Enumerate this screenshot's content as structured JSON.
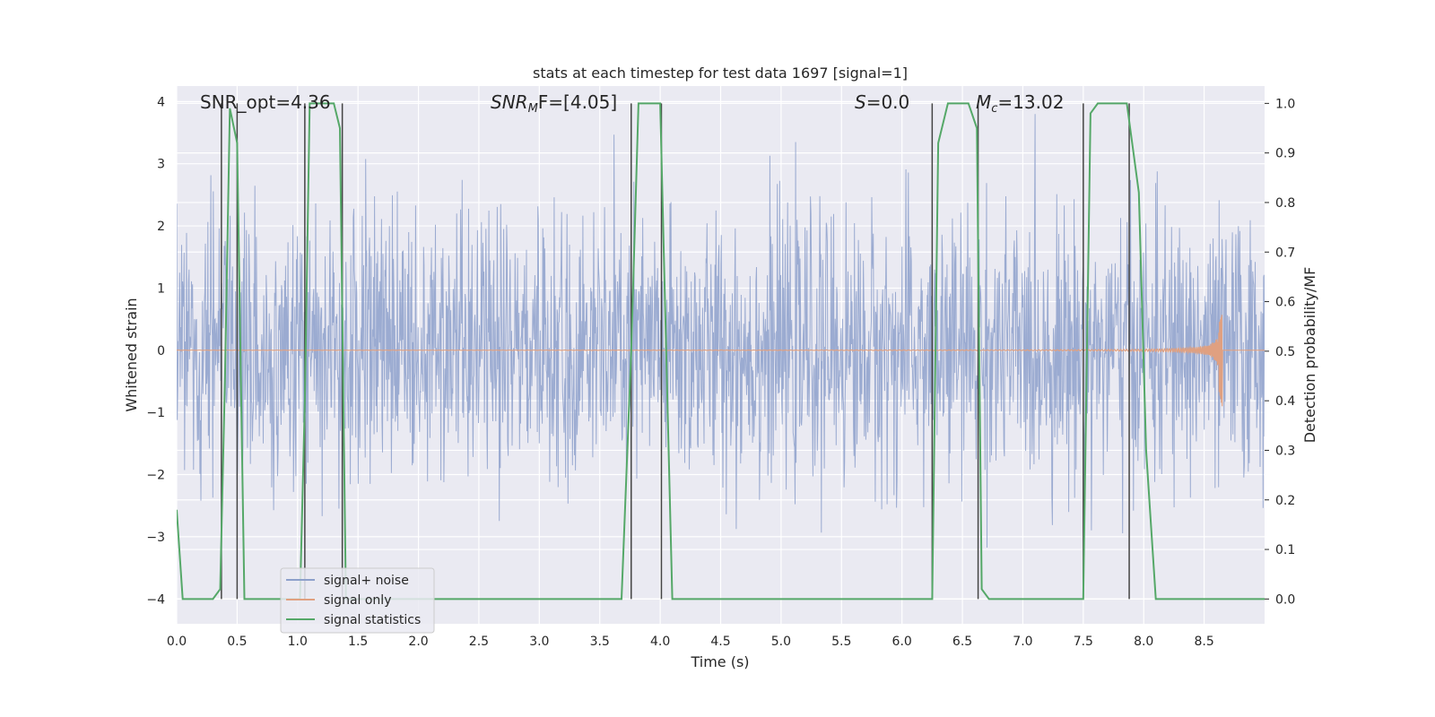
{
  "chart_data": {
    "type": "line",
    "title": "stats at each timestep for test data 1697 [signal=1]",
    "xlabel": "Time (s)",
    "ylabel_left": "Whitened strain",
    "ylabel_right": "Detection probability/MF",
    "xlim": [
      0.0,
      9.0
    ],
    "ylim_left": [
      -4.4,
      4.25
    ],
    "ylim_right": [
      -0.05,
      1.035
    ],
    "x_ticks": [
      "0.0",
      "0.5",
      "1.0",
      "1.5",
      "2.0",
      "2.5",
      "3.0",
      "3.5",
      "4.0",
      "4.5",
      "5.0",
      "5.5",
      "6.0",
      "6.5",
      "7.0",
      "7.5",
      "8.0",
      "8.5"
    ],
    "y_ticks_left": [
      "4",
      "3",
      "2",
      "1",
      "0",
      "−1",
      "−2",
      "−3",
      "−4"
    ],
    "y_ticks_right": [
      "1.0",
      "0.9",
      "0.8",
      "0.7",
      "0.6",
      "0.5",
      "0.4",
      "0.3",
      "0.2",
      "0.1",
      "0.0"
    ],
    "grid": true,
    "legend_position": "lower-left",
    "colors": {
      "background": "#eaeaf2",
      "grid": "#ffffff",
      "noise": "#8da0cb",
      "signal": "#e0a080",
      "stats": "#55a868",
      "threshold": "#444444"
    },
    "annotations": {
      "snr_opt": "SNR_opt=4.36",
      "snr_mf_main": "SNR",
      "snr_mf_sub": "M",
      "snr_mf_rest": "F=[4.05]",
      "s_main": "S",
      "s_rest": "=0.0",
      "mc_main": "M",
      "mc_sub": "c",
      "mc_rest": "=13.02"
    },
    "series": [
      {
        "name": "signal+ noise",
        "axis": "left",
        "envelope_typical": [
          -1.5,
          1.5
        ],
        "peak_range": [
          -3.7,
          3.8
        ]
      },
      {
        "name": "signal only",
        "axis": "left",
        "chirp": {
          "start_time": 0.0,
          "merger_time": 8.65,
          "peak_amplitude": 0.62,
          "min_amplitude": -0.95
        }
      },
      {
        "name": "signal statistics",
        "axis": "right",
        "x": [
          0.0,
          0.05,
          0.1,
          0.3,
          0.36,
          0.4,
          0.44,
          0.5,
          0.56,
          0.6,
          1.02,
          1.06,
          1.1,
          1.3,
          1.35,
          1.4,
          1.45,
          3.68,
          3.76,
          3.82,
          4.0,
          4.05,
          4.1,
          6.2,
          6.25,
          6.3,
          6.38,
          6.55,
          6.62,
          6.66,
          6.72,
          7.5,
          7.56,
          7.62,
          7.86,
          7.96,
          8.02,
          8.1,
          9.0
        ],
        "y": [
          0.18,
          0.0,
          0.0,
          0.0,
          0.02,
          0.45,
          0.99,
          0.92,
          0.0,
          0.0,
          0.0,
          0.4,
          1.0,
          1.0,
          0.95,
          0.0,
          0.0,
          0.0,
          0.5,
          1.0,
          1.0,
          0.5,
          0.0,
          0.0,
          0.0,
          0.92,
          1.0,
          1.0,
          0.95,
          0.02,
          0.0,
          0.0,
          0.98,
          1.0,
          1.0,
          0.82,
          0.3,
          0.0,
          0.0
        ]
      }
    ],
    "threshold_lines_x": [
      0.37,
      0.5,
      1.06,
      1.37,
      3.76,
      4.01,
      6.25,
      6.63,
      7.5,
      7.88
    ]
  }
}
